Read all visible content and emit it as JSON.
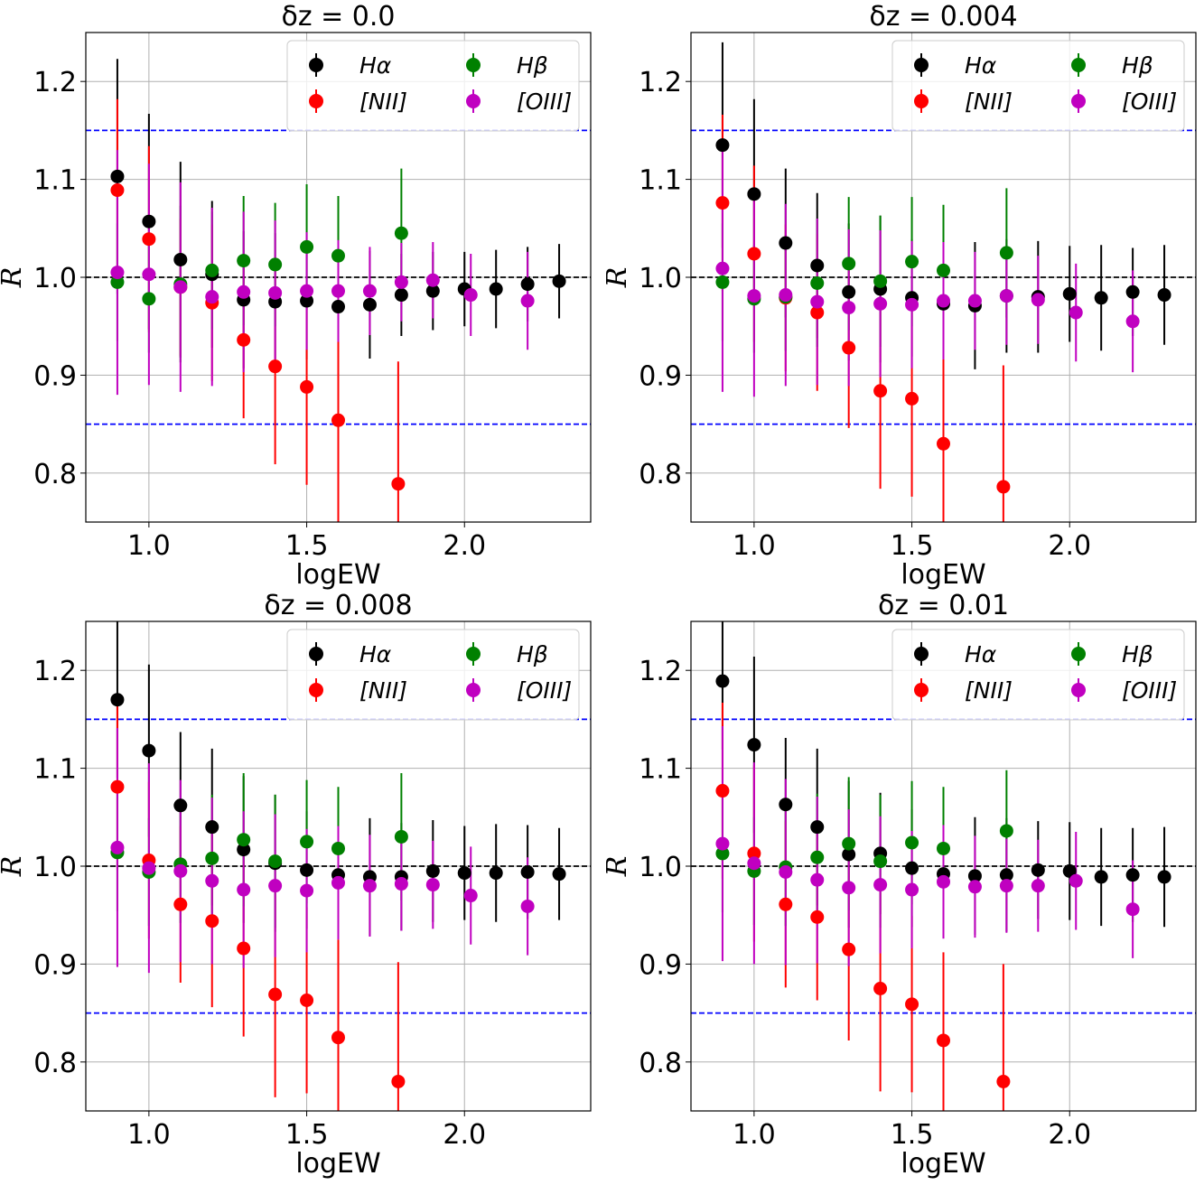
{
  "chart_data": [
    {
      "type": "scatter",
      "title": "δz = 0.0",
      "xlabel": "logEW",
      "ylabel": "R",
      "xlim": [
        0.8,
        2.4
      ],
      "ylim": [
        0.75,
        1.25
      ],
      "xticks": [
        "1.0",
        "1.5",
        "2.0"
      ],
      "yticks": [
        "0.8",
        "0.9",
        "1.0",
        "1.1",
        "1.2"
      ],
      "grid": true,
      "reference_lines": [
        1.15,
        1.0,
        0.85
      ],
      "legend_position": "top-right",
      "series": [
        {
          "name": "Hα",
          "color": "#000000",
          "x": [
            0.9,
            1.0,
            1.1,
            1.2,
            1.3,
            1.4,
            1.5,
            1.6,
            1.7,
            1.8,
            1.9,
            2.0,
            2.1,
            2.2,
            2.3
          ],
          "y": [
            1.103,
            1.057,
            1.018,
            1.003,
            0.977,
            0.975,
            0.976,
            0.97,
            0.972,
            0.982,
            0.986,
            0.988,
            0.988,
            0.993,
            0.996
          ],
          "err": [
            0.12,
            0.11,
            0.1,
            0.075,
            0.07,
            0.07,
            0.06,
            0.06,
            0.055,
            0.042,
            0.04,
            0.038,
            0.04,
            0.038,
            0.038
          ]
        },
        {
          "name": "[NII]",
          "color": "#ff0000",
          "x": [
            0.9,
            1.0,
            1.1,
            1.2,
            1.3,
            1.4,
            1.5,
            1.6,
            1.79
          ],
          "y": [
            1.089,
            1.039,
            0.99,
            0.974,
            0.936,
            0.909,
            0.888,
            0.854,
            0.789
          ],
          "err": [
            0.093,
            0.095,
            0.07,
            0.08,
            0.08,
            0.1,
            0.1,
            0.11,
            0.125
          ]
        },
        {
          "name": "Hβ",
          "color": "#008000",
          "x": [
            0.9,
            1.0,
            1.1,
            1.2,
            1.3,
            1.4,
            1.5,
            1.6,
            1.8
          ],
          "y": [
            0.995,
            0.978,
            0.993,
            1.007,
            1.017,
            1.013,
            1.031,
            1.022,
            1.045
          ],
          "err": [
            0.06,
            0.055,
            0.08,
            0.06,
            0.066,
            0.063,
            0.064,
            0.061,
            0.066
          ]
        },
        {
          "name": "[OIII]",
          "color": "#c000c0",
          "x": [
            0.9,
            1.0,
            1.1,
            1.2,
            1.3,
            1.4,
            1.5,
            1.6,
            1.7,
            1.8,
            1.9,
            2.02,
            2.2
          ],
          "y": [
            1.005,
            1.003,
            0.99,
            0.98,
            0.985,
            0.984,
            0.986,
            0.986,
            0.986,
            0.995,
            0.997,
            0.982,
            0.976
          ],
          "err": [
            0.125,
            0.113,
            0.107,
            0.091,
            0.082,
            0.074,
            0.06,
            0.052,
            0.045,
            0.04,
            0.039,
            0.042,
            0.05
          ]
        }
      ]
    },
    {
      "type": "scatter",
      "title": "δz = 0.004",
      "xlabel": "logEW",
      "ylabel": "R",
      "xlim": [
        0.8,
        2.4
      ],
      "ylim": [
        0.75,
        1.25
      ],
      "xticks": [
        "1.0",
        "1.5",
        "2.0"
      ],
      "yticks": [
        "0.8",
        "0.9",
        "1.0",
        "1.1",
        "1.2"
      ],
      "grid": true,
      "reference_lines": [
        1.15,
        1.0,
        0.85
      ],
      "legend_position": "top-right",
      "series": [
        {
          "name": "Hα",
          "color": "#000000",
          "x": [
            0.9,
            1.0,
            1.1,
            1.2,
            1.3,
            1.4,
            1.5,
            1.6,
            1.7,
            1.8,
            1.9,
            2.0,
            2.1,
            2.2,
            2.3
          ],
          "y": [
            1.135,
            1.085,
            1.035,
            1.012,
            0.985,
            0.988,
            0.979,
            0.973,
            0.971,
            0.981,
            0.98,
            0.983,
            0.979,
            0.985,
            0.982
          ],
          "err": [
            0.105,
            0.097,
            0.076,
            0.074,
            0.07,
            0.075,
            0.06,
            0.06,
            0.065,
            0.058,
            0.057,
            0.049,
            0.054,
            0.045,
            0.051
          ]
        },
        {
          "name": "[NII]",
          "color": "#ff0000",
          "x": [
            0.9,
            1.0,
            1.1,
            1.2,
            1.3,
            1.4,
            1.5,
            1.6,
            1.79
          ],
          "y": [
            1.076,
            1.024,
            0.979,
            0.964,
            0.928,
            0.884,
            0.876,
            0.83,
            0.786
          ],
          "err": [
            0.09,
            0.09,
            0.075,
            0.08,
            0.082,
            0.1,
            0.1,
            0.1,
            0.124
          ]
        },
        {
          "name": "Hβ",
          "color": "#008000",
          "x": [
            0.9,
            1.0,
            1.1,
            1.2,
            1.3,
            1.4,
            1.5,
            1.6,
            1.8
          ],
          "y": [
            0.995,
            0.978,
            0.98,
            0.994,
            1.014,
            0.996,
            1.016,
            1.007,
            1.025
          ],
          "err": [
            0.06,
            0.055,
            0.055,
            0.065,
            0.068,
            0.067,
            0.066,
            0.067,
            0.066
          ]
        },
        {
          "name": "[OIII]",
          "color": "#c000c0",
          "x": [
            0.9,
            1.0,
            1.1,
            1.2,
            1.3,
            1.4,
            1.5,
            1.6,
            1.7,
            1.8,
            1.9,
            2.02,
            2.2
          ],
          "y": [
            1.009,
            0.981,
            0.982,
            0.975,
            0.969,
            0.973,
            0.972,
            0.976,
            0.976,
            0.981,
            0.977,
            0.964,
            0.955
          ],
          "err": [
            0.126,
            0.103,
            0.093,
            0.085,
            0.08,
            0.075,
            0.065,
            0.06,
            0.05,
            0.05,
            0.045,
            0.05,
            0.052
          ]
        }
      ]
    },
    {
      "type": "scatter",
      "title": "δz = 0.008",
      "xlabel": "logEW",
      "ylabel": "R",
      "xlim": [
        0.8,
        2.4
      ],
      "ylim": [
        0.75,
        1.25
      ],
      "xticks": [
        "1.0",
        "1.5",
        "2.0"
      ],
      "yticks": [
        "0.8",
        "0.9",
        "1.0",
        "1.1",
        "1.2"
      ],
      "grid": true,
      "reference_lines": [
        1.15,
        1.0,
        0.85
      ],
      "legend_position": "top-right",
      "series": [
        {
          "name": "Hα",
          "color": "#000000",
          "x": [
            0.9,
            1.0,
            1.1,
            1.2,
            1.3,
            1.4,
            1.5,
            1.6,
            1.7,
            1.8,
            1.9,
            2.0,
            2.1,
            2.2,
            2.3
          ],
          "y": [
            1.17,
            1.118,
            1.062,
            1.04,
            1.017,
            1.003,
            0.996,
            0.991,
            0.989,
            0.989,
            0.995,
            0.993,
            0.993,
            0.994,
            0.992
          ],
          "err": [
            0.08,
            0.088,
            0.075,
            0.08,
            0.075,
            0.07,
            0.06,
            0.06,
            0.06,
            0.055,
            0.052,
            0.048,
            0.05,
            0.048,
            0.047
          ]
        },
        {
          "name": "[NII]",
          "color": "#ff0000",
          "x": [
            0.9,
            1.0,
            1.1,
            1.2,
            1.3,
            1.4,
            1.5,
            1.6,
            1.79
          ],
          "y": [
            1.081,
            1.006,
            0.961,
            0.944,
            0.916,
            0.869,
            0.863,
            0.825,
            0.78
          ],
          "err": [
            0.085,
            0.08,
            0.08,
            0.088,
            0.09,
            0.105,
            0.095,
            0.1,
            0.122
          ]
        },
        {
          "name": "Hβ",
          "color": "#008000",
          "x": [
            0.9,
            1.0,
            1.1,
            1.2,
            1.3,
            1.4,
            1.5,
            1.6,
            1.8
          ],
          "y": [
            1.014,
            0.994,
            1.002,
            1.008,
            1.027,
            1.005,
            1.025,
            1.018,
            1.03
          ],
          "err": [
            0.06,
            0.055,
            0.06,
            0.065,
            0.068,
            0.068,
            0.063,
            0.063,
            0.065
          ]
        },
        {
          "name": "[OIII]",
          "color": "#c000c0",
          "x": [
            0.9,
            1.0,
            1.1,
            1.2,
            1.3,
            1.4,
            1.5,
            1.6,
            1.7,
            1.8,
            1.9,
            2.02,
            2.2
          ],
          "y": [
            1.019,
            0.998,
            0.995,
            0.985,
            0.976,
            0.98,
            0.975,
            0.983,
            0.98,
            0.982,
            0.981,
            0.97,
            0.959
          ],
          "err": [
            0.122,
            0.107,
            0.093,
            0.085,
            0.08,
            0.073,
            0.063,
            0.058,
            0.052,
            0.048,
            0.045,
            0.05,
            0.05
          ]
        }
      ]
    },
    {
      "type": "scatter",
      "title": "δz = 0.01",
      "xlabel": "logEW",
      "ylabel": "R",
      "xlim": [
        0.8,
        2.4
      ],
      "ylim": [
        0.75,
        1.25
      ],
      "xticks": [
        "1.0",
        "1.5",
        "2.0"
      ],
      "yticks": [
        "0.8",
        "0.9",
        "1.0",
        "1.1",
        "1.2"
      ],
      "grid": true,
      "reference_lines": [
        1.15,
        1.0,
        0.85
      ],
      "legend_position": "top-right",
      "series": [
        {
          "name": "Hα",
          "color": "#000000",
          "x": [
            0.9,
            1.0,
            1.1,
            1.2,
            1.3,
            1.4,
            1.5,
            1.6,
            1.7,
            1.8,
            1.9,
            2.0,
            2.1,
            2.2,
            2.3
          ],
          "y": [
            1.189,
            1.124,
            1.063,
            1.04,
            1.012,
            1.013,
            0.998,
            0.992,
            0.99,
            0.991,
            0.996,
            0.995,
            0.989,
            0.991,
            0.989
          ],
          "err": [
            0.07,
            0.09,
            0.068,
            0.08,
            0.075,
            0.062,
            0.06,
            0.06,
            0.06,
            0.058,
            0.05,
            0.05,
            0.05,
            0.048,
            0.051
          ]
        },
        {
          "name": "[NII]",
          "color": "#ff0000",
          "x": [
            0.9,
            1.0,
            1.1,
            1.2,
            1.3,
            1.4,
            1.5,
            1.6,
            1.79
          ],
          "y": [
            1.077,
            1.013,
            0.961,
            0.948,
            0.915,
            0.875,
            0.859,
            0.822,
            0.78
          ],
          "err": [
            0.09,
            0.09,
            0.085,
            0.085,
            0.093,
            0.105,
            0.09,
            0.09,
            0.12
          ]
        },
        {
          "name": "Hβ",
          "color": "#008000",
          "x": [
            0.9,
            1.0,
            1.1,
            1.2,
            1.3,
            1.4,
            1.5,
            1.6,
            1.8
          ],
          "y": [
            1.013,
            0.995,
            0.999,
            1.009,
            1.023,
            1.005,
            1.024,
            1.018,
            1.036
          ],
          "err": [
            0.06,
            0.055,
            0.06,
            0.065,
            0.068,
            0.068,
            0.063,
            0.063,
            0.062
          ]
        },
        {
          "name": "[OIII]",
          "color": "#c000c0",
          "x": [
            0.9,
            1.0,
            1.1,
            1.2,
            1.3,
            1.4,
            1.5,
            1.6,
            1.7,
            1.8,
            1.9,
            2.02,
            2.2
          ],
          "y": [
            1.023,
            1.003,
            0.994,
            0.986,
            0.978,
            0.981,
            0.976,
            0.984,
            0.979,
            0.98,
            0.98,
            0.985,
            0.956
          ],
          "err": [
            0.12,
            0.103,
            0.095,
            0.085,
            0.08,
            0.07,
            0.06,
            0.058,
            0.052,
            0.048,
            0.047,
            0.05,
            0.05
          ]
        }
      ]
    }
  ],
  "style": {
    "grid_color": "#b0b0b0",
    "reference_line_color": "#0000ff",
    "unity_line_color": "#000000"
  }
}
